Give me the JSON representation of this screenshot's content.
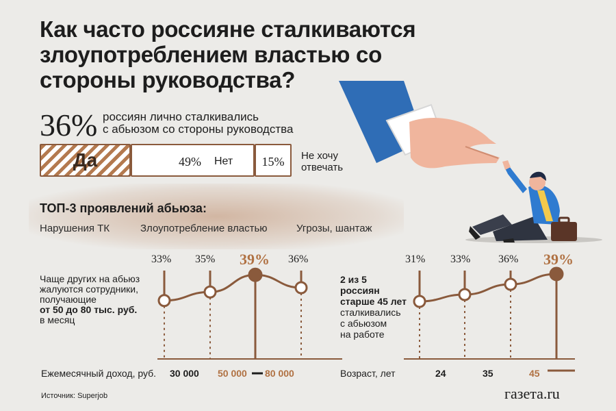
{
  "title": "Как часто россияне сталкиваются злоупотреблением властью со стороны руководства?",
  "headline": {
    "percent": "36%",
    "description_line1": "россиян лично сталкивались",
    "description_line2": "с абьюзом со стороны руководства"
  },
  "answers": {
    "yes_label": "Да",
    "no_percent": "49%",
    "no_label": "Нет",
    "na_percent": "15%",
    "na_label_line1": "Не хочу",
    "na_label_line2": "отвечать"
  },
  "top3": {
    "heading": "ТОП-3 проявлений абьюза:",
    "items": [
      "Нарушения ТК",
      "Злоупотребление властью",
      "Угрозы, шантаж"
    ]
  },
  "chart_data": [
    {
      "type": "line",
      "xlabel": "Ежемесячный доход, руб.",
      "tick_labels": [
        "30 000",
        "50 000",
        "80 000"
      ],
      "value_labels": [
        "33%",
        "35%",
        "39%",
        "36%"
      ],
      "values": [
        33,
        35,
        39,
        36
      ],
      "highlight_index": 2,
      "description": {
        "line1": "Чаще других на абьюз",
        "line2": "жалуются сотрудники,",
        "line3": "получающие",
        "line4": "от 50 до 80 тыс. руб.",
        "line5": "в месяц"
      }
    },
    {
      "type": "line",
      "xlabel": "Возраст, лет",
      "tick_labels": [
        "24",
        "35",
        "45"
      ],
      "value_labels": [
        "31%",
        "33%",
        "36%",
        "39%"
      ],
      "values": [
        31,
        33,
        36,
        39
      ],
      "highlight_index": 3,
      "description": {
        "line1": "2 из 5",
        "line2": "россиян",
        "line3": "старше 45 лет",
        "line4": "сталкивались",
        "line5": "с абьюзом",
        "line6": "на работе"
      }
    }
  ],
  "colors": {
    "accent": "#b07142",
    "dark_brown": "#8a5a3c",
    "background": "#ecebe8"
  },
  "source": "Источник: Superjob",
  "brand": "газета.ru"
}
